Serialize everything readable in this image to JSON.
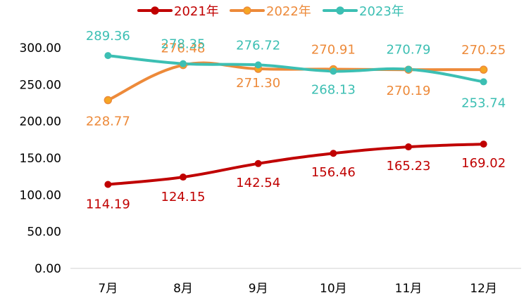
{
  "chart_data": {
    "type": "line",
    "categories": [
      "7月",
      "8月",
      "9月",
      "10月",
      "11月",
      "12月"
    ],
    "ylim": [
      0,
      300
    ],
    "y_ticks": [
      "0.00",
      "50.00",
      "100.00",
      "150.00",
      "200.00",
      "250.00",
      "300.00"
    ],
    "grid": false,
    "legend_position": "top",
    "series": [
      {
        "name": "2021年",
        "color": "#C00000",
        "values": [
          114.19,
          124.15,
          142.54,
          156.46,
          165.23,
          169.02
        ],
        "labels": [
          "114.19",
          "124.15",
          "142.54",
          "156.46",
          "165.23",
          "169.02"
        ]
      },
      {
        "name": "2022年",
        "color": "#ED8A3A",
        "values": [
          228.77,
          276.48,
          271.3,
          270.91,
          270.19,
          270.25
        ],
        "labels": [
          "228.77",
          "276.48",
          "271.30",
          "270.91",
          "270.19",
          "270.25"
        ]
      },
      {
        "name": "2023年",
        "color": "#3CBFB3",
        "values": [
          289.36,
          278.35,
          276.72,
          268.13,
          270.79,
          253.74
        ],
        "labels": [
          "289.36",
          "278.35",
          "276.72",
          "268.13",
          "270.79",
          "253.74"
        ]
      }
    ]
  }
}
